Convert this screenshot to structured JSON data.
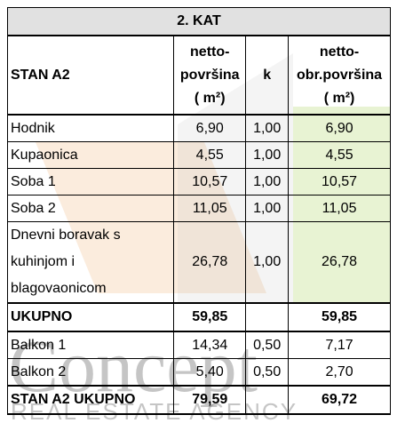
{
  "table": {
    "title": "2. KAT",
    "header": {
      "unit": "STAN A2",
      "netto": [
        "netto-",
        "površina",
        "( m²)"
      ],
      "k": "k",
      "obr": [
        "netto-",
        "obr.površina",
        "( m²)"
      ]
    },
    "rows": [
      {
        "name": [
          "Hodnik"
        ],
        "netto": "6,90",
        "k": "1,00",
        "obr": "6,90"
      },
      {
        "name": [
          "Kupaonica"
        ],
        "netto": "4,55",
        "k": "1,00",
        "obr": "4,55"
      },
      {
        "name": [
          "Soba 1"
        ],
        "netto": "10,57",
        "k": "1,00",
        "obr": "10,57"
      },
      {
        "name": [
          "Soba 2"
        ],
        "netto": "11,05",
        "k": "1,00",
        "obr": "11,05"
      },
      {
        "name": [
          "Dnevni boravak s",
          "kuhinjom i",
          "blagovaonicom"
        ],
        "netto": "26,78",
        "k": "1,00",
        "obr": "26,78"
      },
      {
        "name": [
          "UKUPNO"
        ],
        "netto": "59,85",
        "obr": "59,85",
        "total": true
      },
      {
        "name": [
          "Balkon 1"
        ],
        "netto": "14,34",
        "k": "0,50",
        "obr": "7,17"
      },
      {
        "name": [
          "Balkon 2"
        ],
        "netto": "5,40",
        "k": "0,50",
        "obr": "2,70"
      },
      {
        "name": [
          "STAN A2 UKUPNO"
        ],
        "netto": "79,59",
        "obr": "69,72",
        "total": true
      }
    ]
  },
  "watermark": {
    "logo": "Concept",
    "tagline": "REAL ESTATE AGENCY"
  }
}
